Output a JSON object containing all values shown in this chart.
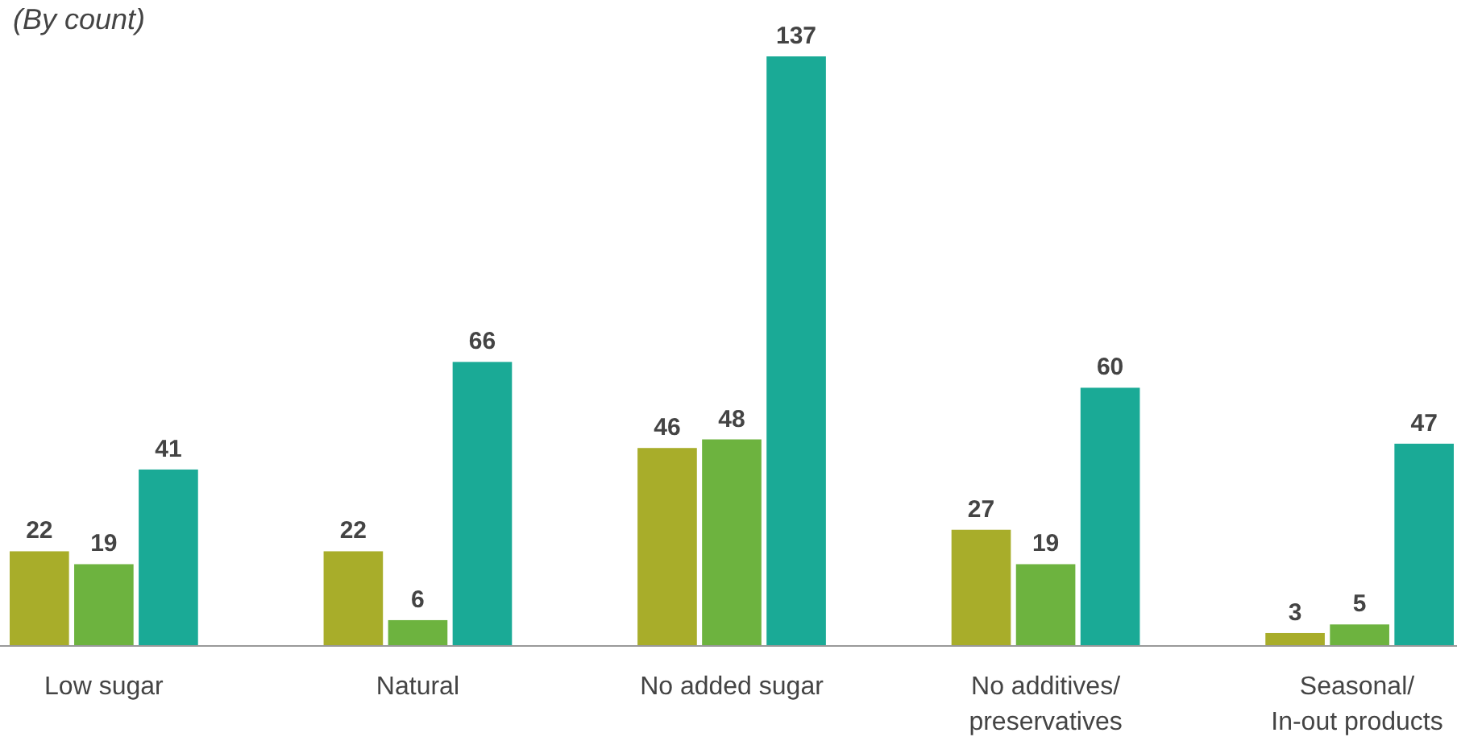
{
  "chart_data": {
    "type": "bar",
    "subtitle": "(By count)",
    "categories": [
      "Low sugar",
      "Natural",
      "No added sugar",
      "No additives/\npreservatives",
      "Seasonal/\nIn-out products"
    ],
    "series": [
      {
        "color": "#a8ad2a",
        "values": [
          22,
          22,
          46,
          27,
          3
        ]
      },
      {
        "color": "#6db33f",
        "values": [
          19,
          6,
          48,
          19,
          5
        ]
      },
      {
        "color": "#1aaa96",
        "values": [
          41,
          66,
          137,
          60,
          47
        ]
      }
    ],
    "data_labels": true
  }
}
